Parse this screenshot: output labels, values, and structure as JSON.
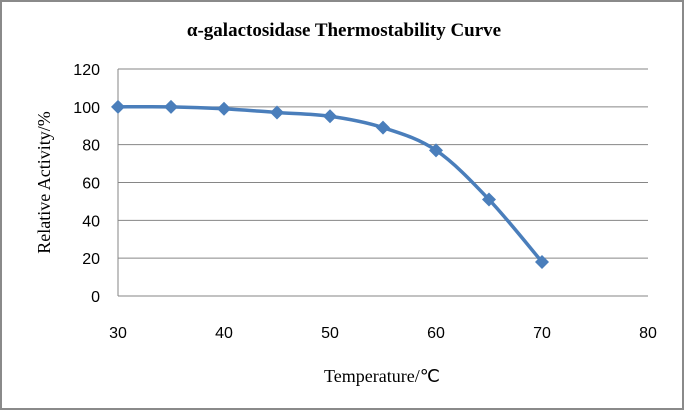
{
  "chart_data": {
    "type": "line",
    "title": "α-galactosidase Thermostability Curve",
    "xlabel": "Temperature/℃",
    "ylabel": "Relative Activity/%",
    "xlim": [
      30,
      80
    ],
    "ylim": [
      0,
      120
    ],
    "x_ticks": [
      30,
      40,
      50,
      60,
      70,
      80
    ],
    "y_ticks": [
      0,
      20,
      40,
      60,
      80,
      100,
      120
    ],
    "grid": "horizontal",
    "legend": "none",
    "smooth": true,
    "series": [
      {
        "name": "Relative Activity",
        "color": "#4a7ebb",
        "marker": "diamond",
        "x": [
          30,
          35,
          40,
          45,
          50,
          55,
          60,
          65,
          70
        ],
        "y": [
          100,
          100,
          99,
          97,
          95,
          89,
          77,
          51,
          18
        ]
      }
    ]
  }
}
